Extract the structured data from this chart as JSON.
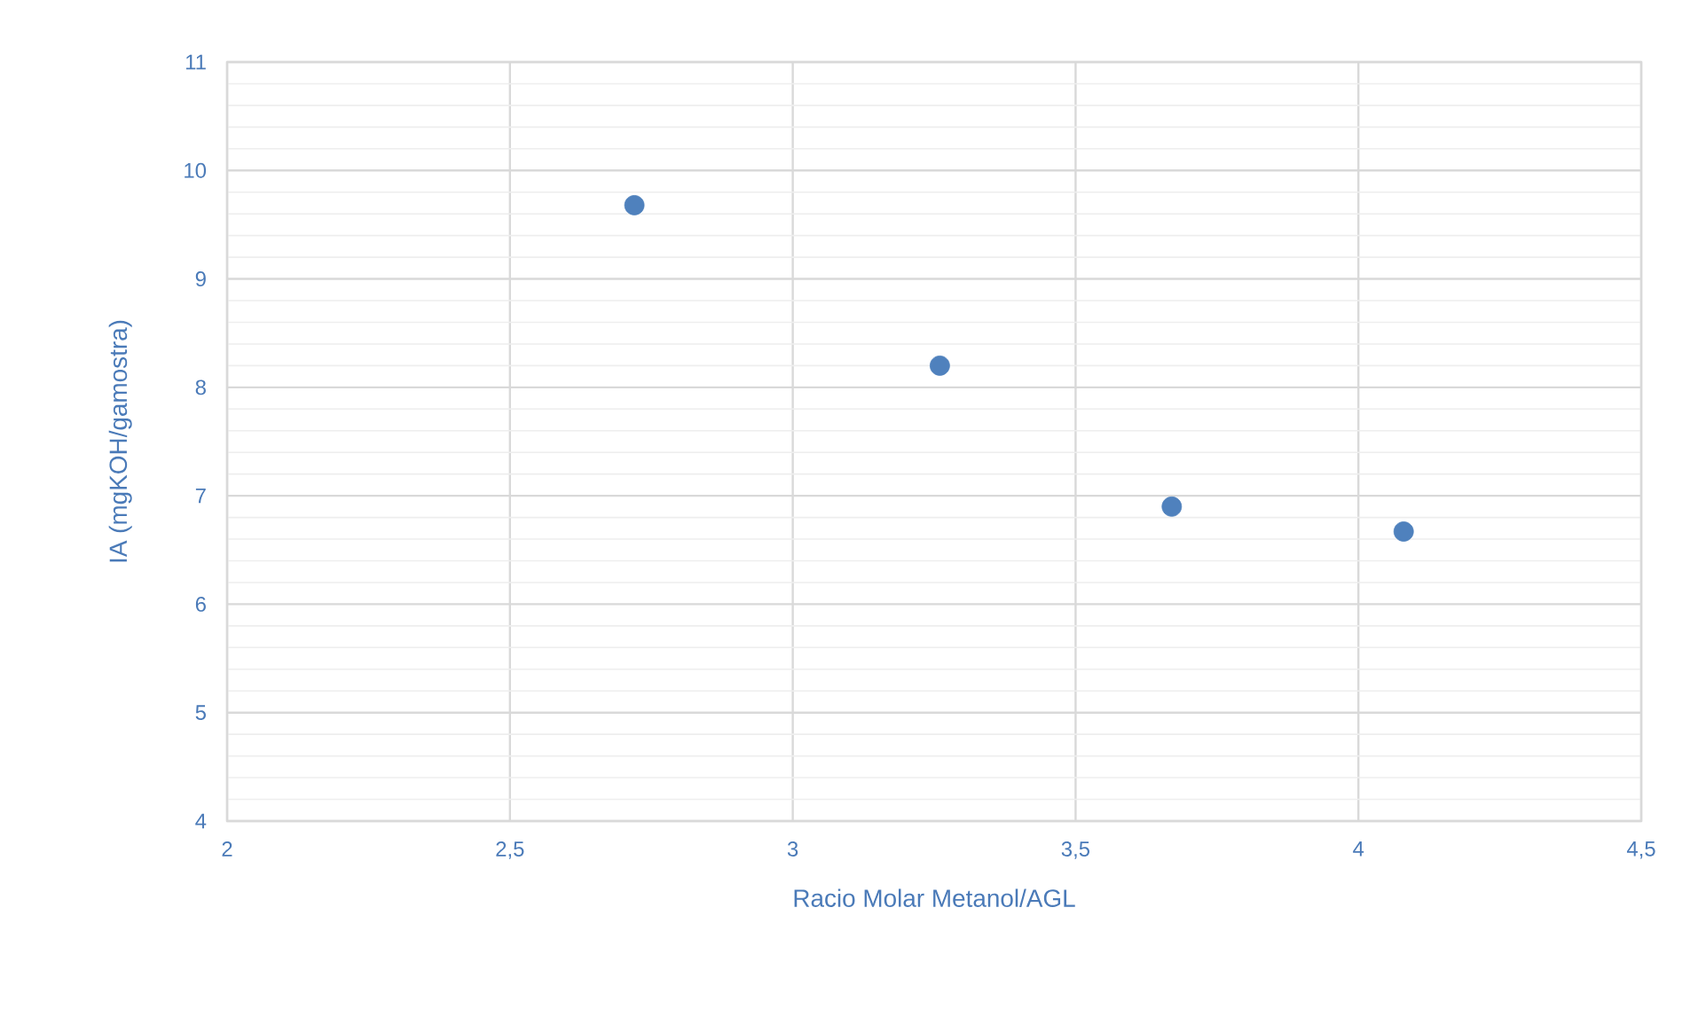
{
  "chart_data": {
    "type": "scatter",
    "xlabel": "Racio Molar Metanol/AGL",
    "ylabel": "IA (mgKOH/gamostra)",
    "x": [
      2.72,
      3.26,
      3.67,
      4.08
    ],
    "series": [
      {
        "color": "#4f81bd",
        "values": [
          9.68,
          8.2,
          6.9,
          6.67
        ]
      }
    ],
    "xlim": [
      2,
      4.5
    ],
    "ylim": [
      4,
      11
    ],
    "xticks": [
      2,
      {
        "value": 2.5,
        "label": "2,5"
      },
      3,
      {
        "value": 3.5,
        "label": "3,5"
      },
      4,
      {
        "value": 4.5,
        "label": "4,5"
      }
    ],
    "yticks": [
      4,
      5,
      6,
      7,
      8,
      9,
      10,
      11
    ],
    "grid": true,
    "marker": "circle",
    "legend": false
  }
}
